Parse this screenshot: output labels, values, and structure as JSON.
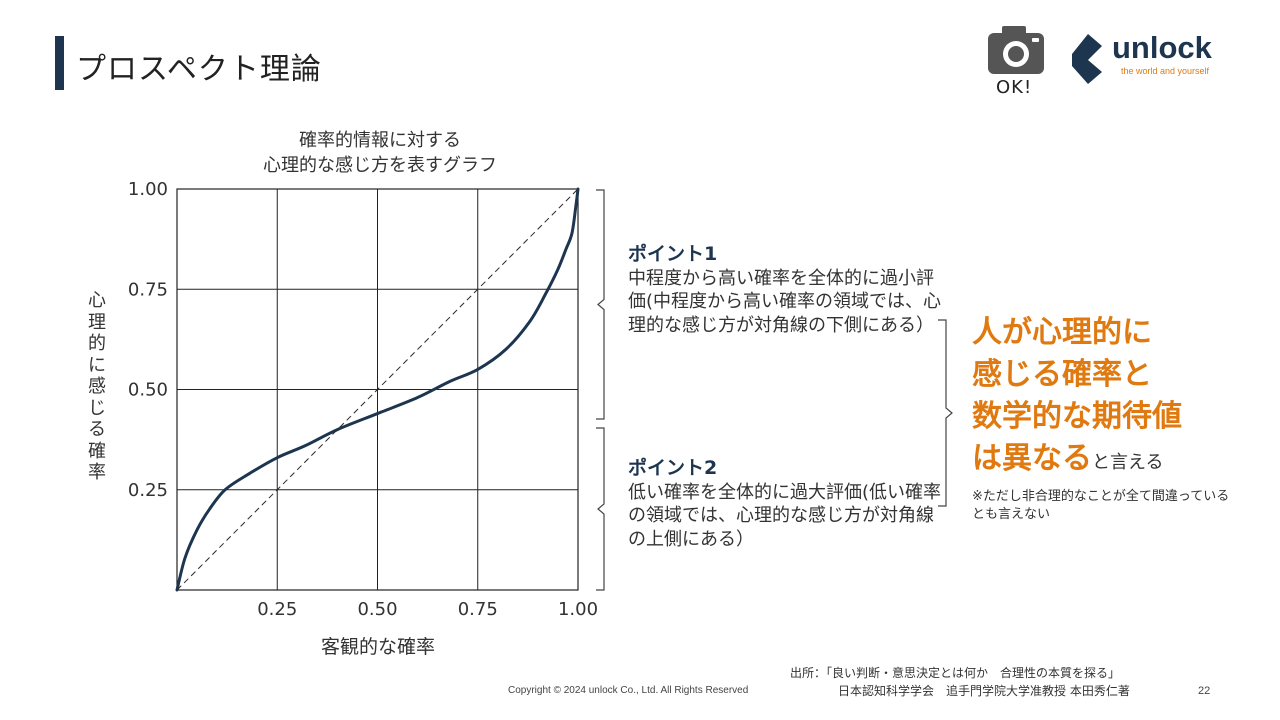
{
  "slide": {
    "title": "プロスペクト理論",
    "camera_label": "OK!",
    "logo_word": "unlock",
    "logo_tagline": "the world and yourself"
  },
  "chart_data": {
    "type": "line",
    "title": "確率的情報に対する\n心理的な感じ方を表すグラフ",
    "xlabel": "客観的な確率",
    "ylabel": "心理的に感じる確率",
    "xlim": [
      0,
      1
    ],
    "ylim": [
      0,
      1
    ],
    "x_ticks": [
      "0.25",
      "0.50",
      "0.75",
      "1.00"
    ],
    "y_ticks": [
      "1.00",
      "0.75",
      "0.50",
      "0.25"
    ],
    "grid": true,
    "series": [
      {
        "style": "solid",
        "color": "#1e3550",
        "x": [
          0,
          0.02,
          0.05,
          0.08,
          0.12,
          0.18,
          0.25,
          0.32,
          0.4,
          0.5,
          0.6,
          0.68,
          0.75,
          0.82,
          0.88,
          0.92,
          0.95,
          0.97,
          0.985,
          0.995,
          1.0
        ],
        "y": [
          0,
          0.08,
          0.15,
          0.2,
          0.25,
          0.29,
          0.33,
          0.36,
          0.4,
          0.44,
          0.48,
          0.52,
          0.55,
          0.6,
          0.67,
          0.74,
          0.8,
          0.85,
          0.89,
          0.96,
          1.0
        ]
      },
      {
        "style": "dashed",
        "color": "#2a2a2a",
        "x": [
          0,
          1
        ],
        "y": [
          0,
          1
        ]
      }
    ]
  },
  "points": [
    {
      "heading": "ポイント1",
      "body": "中程度から高い確率を全体的に過小評価(中程度から高い確率の領域では、心理的な感じ方が対角線の下側にある）"
    },
    {
      "heading": "ポイント2",
      "body": "低い確率を全体的に過大評価(低い確率の領域では、心理的な感じ方が対角線の上側にある）"
    }
  ],
  "conclusion": {
    "lines": [
      "人が心理的に",
      "感じる確率と",
      "数学的な期待値",
      "は異なる"
    ],
    "tail": "と言える",
    "note": "※ただし非合理的なことが全て間違っているとも言えない"
  },
  "footer": {
    "source_line": "出所：「良い判断・意思決定とは何か　合理性の本質を探る」",
    "source_org": "日本認知科学学会　追手門学院大学准教授 本田秀仁著",
    "copyright": "Copyright © 2024 unlock Co., Ltd. All Rights Reserved",
    "page": "22"
  },
  "colors": {
    "accent": "#e07a10",
    "navy": "#1e3550"
  }
}
